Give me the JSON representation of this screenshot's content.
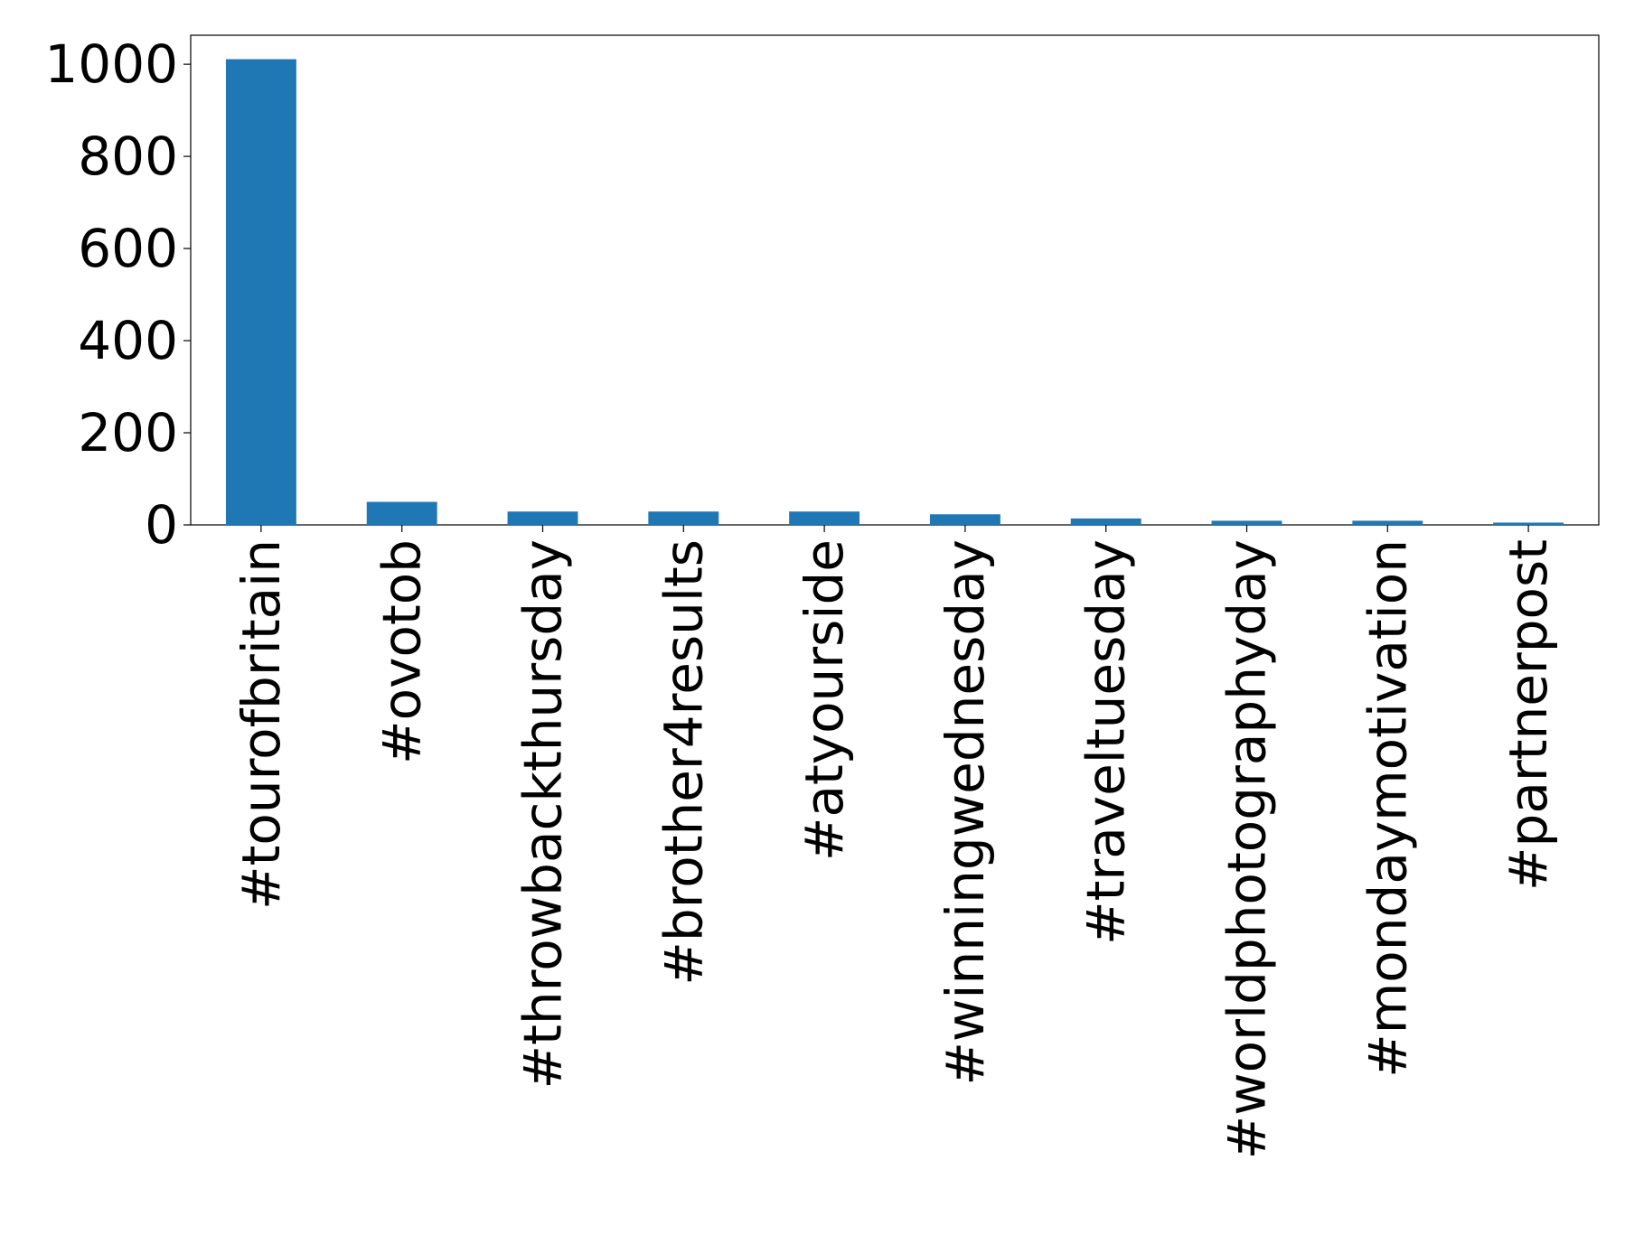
{
  "chart_data": {
    "type": "bar",
    "categories": [
      "#tourofbritain",
      "#ovotob",
      "#throwbackthursday",
      "#brother4results",
      "#atyourside",
      "#winningwednesday",
      "#traveltuesday",
      "#worldphotographyday",
      "#mondaymotivation",
      "#partnerpost"
    ],
    "values": [
      1011,
      50,
      29,
      29,
      29,
      23,
      14,
      9,
      9,
      5
    ],
    "color": "#1f77b4",
    "ylim": [
      0,
      1063
    ],
    "yticks": [
      0,
      200,
      400,
      600,
      800,
      1000
    ],
    "grid": false
  }
}
